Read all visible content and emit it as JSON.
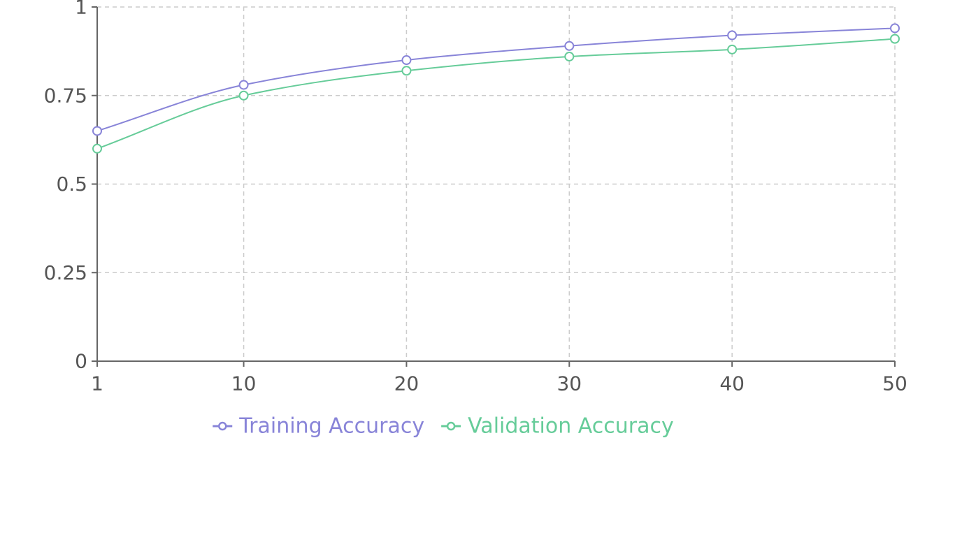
{
  "chart_data": {
    "type": "line",
    "title": "",
    "xlabel": "",
    "ylabel": "",
    "x": [
      1,
      10,
      20,
      30,
      40,
      50
    ],
    "x_ticks": [
      "1",
      "10",
      "20",
      "30",
      "40",
      "50"
    ],
    "y_ticks": [
      "0",
      "0.25",
      "0.5",
      "0.75",
      "1"
    ],
    "y_tick_values": [
      0,
      0.25,
      0.5,
      0.75,
      1
    ],
    "xlim": [
      1,
      50
    ],
    "ylim": [
      0,
      1
    ],
    "grid": true,
    "legend_position": "bottom",
    "series": [
      {
        "name": "Training Accuracy",
        "color": "#8884d8",
        "values": [
          0.65,
          0.78,
          0.85,
          0.89,
          0.92,
          0.94
        ]
      },
      {
        "name": "Validation Accuracy",
        "color": "#66cc99",
        "values": [
          0.6,
          0.75,
          0.82,
          0.86,
          0.88,
          0.91
        ]
      }
    ]
  }
}
